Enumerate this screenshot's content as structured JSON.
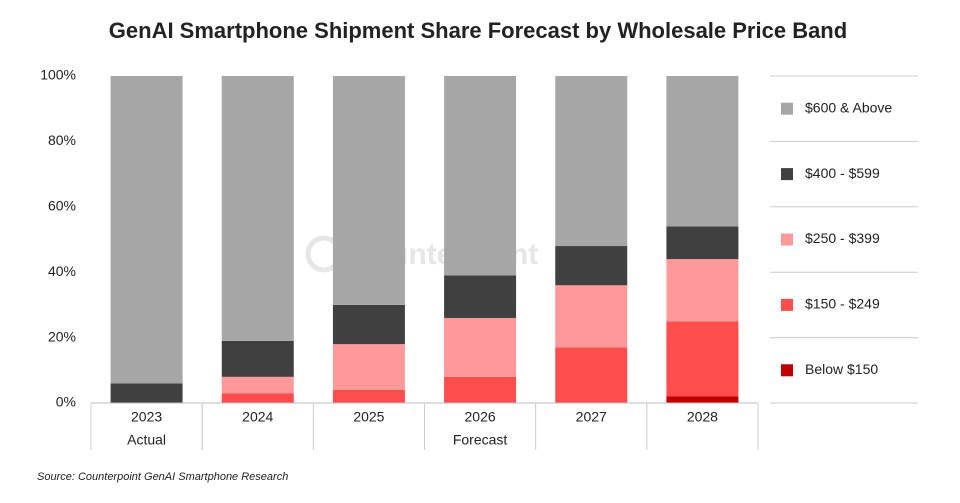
{
  "chart_data": {
    "type": "stacked_bar",
    "title": "GenAI Smartphone Shipment Share Forecast by Wholesale Price Band",
    "categories": [
      "2023",
      "2024",
      "2025",
      "2026",
      "2027",
      "2028"
    ],
    "groups": [
      {
        "label": "Actual",
        "count": 1
      },
      {
        "label": "Forecast",
        "count": 5
      }
    ],
    "series": [
      {
        "name": "Below $150",
        "color": "#c00000",
        "values": [
          0,
          0,
          0,
          0,
          0,
          2
        ]
      },
      {
        "name": "$150 - $249",
        "color": "#ff4d4d",
        "values": [
          0,
          3,
          4,
          8,
          17,
          23
        ]
      },
      {
        "name": "$250 - $399",
        "color": "#ff9999",
        "values": [
          0,
          5,
          14,
          18,
          19,
          19
        ]
      },
      {
        "name": "$400 - $599",
        "color": "#404040",
        "values": [
          6,
          11,
          12,
          13,
          12,
          10
        ]
      },
      {
        "name": "$600 & Above",
        "color": "#a6a6a6",
        "values": [
          94,
          81,
          70,
          61,
          52,
          46
        ]
      }
    ],
    "ylim": [
      0,
      100
    ],
    "yticks": [
      {
        "value": 0,
        "label": "0%"
      },
      {
        "value": 20,
        "label": "20%"
      },
      {
        "value": 40,
        "label": "40%"
      },
      {
        "value": 60,
        "label": "60%"
      },
      {
        "value": 80,
        "label": "80%"
      },
      {
        "value": 100,
        "label": "100%"
      }
    ],
    "grid": false,
    "legend": "right",
    "watermark": "Counterpoint",
    "source": "Source: Counterpoint GenAI Smartphone Research"
  }
}
